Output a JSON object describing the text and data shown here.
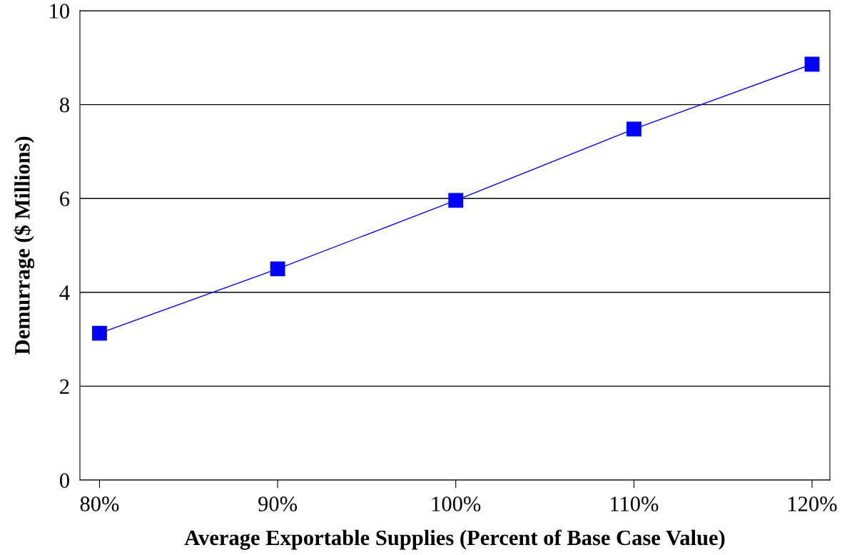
{
  "chart_data": {
    "type": "line",
    "xlabel": "Average Exportable Supplies (Percent of Base Case Value)",
    "ylabel": "Demurrage ($ Millions)",
    "x": [
      80,
      90,
      100,
      110,
      120
    ],
    "series": [
      {
        "color": "#0000ff",
        "values": [
          3.13,
          4.5,
          5.96,
          7.48,
          8.86
        ]
      }
    ],
    "xlim": [
      78.9,
      121.0
    ],
    "xticks": [
      {
        "value": 80,
        "label": "80%"
      },
      {
        "value": 90,
        "label": "90%"
      },
      {
        "value": 100,
        "label": "100%"
      },
      {
        "value": 110,
        "label": "110%"
      },
      {
        "value": 120,
        "label": "120%"
      }
    ],
    "ylim": [
      0,
      10
    ],
    "yticks": [
      0,
      2,
      4,
      6,
      8,
      10
    ],
    "grid": "y",
    "marker": "square",
    "line_style": "solid"
  }
}
